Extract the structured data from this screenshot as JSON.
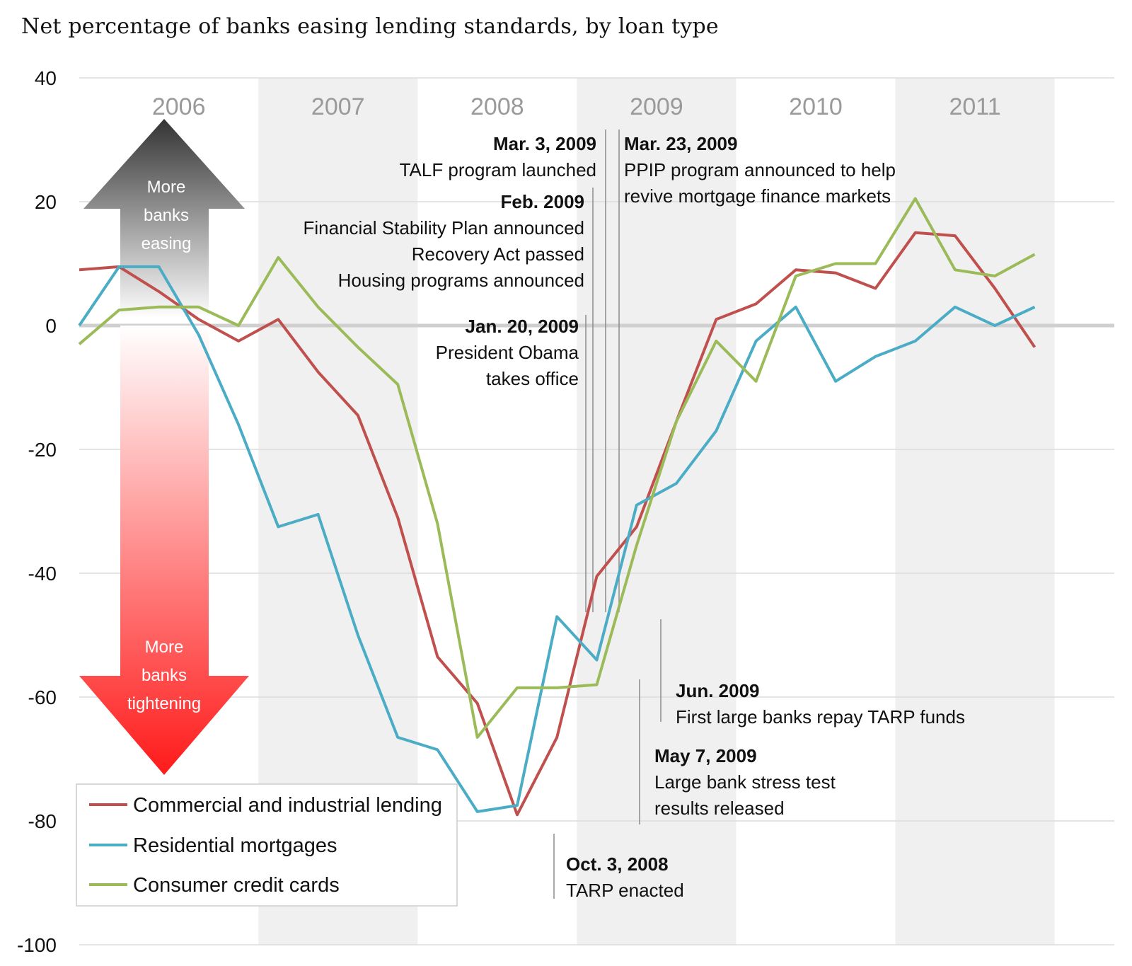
{
  "title": "Net percentage of banks easing lending standards, by loan type",
  "arrow": {
    "up_lines": [
      "More",
      "banks",
      "easing"
    ],
    "down_lines": [
      "More",
      "banks",
      "tightening"
    ]
  },
  "annotations": [
    {
      "key": "tarp",
      "x": 2008.75,
      "bold": "Oct. 3, 2008",
      "lines": [
        "TARP enacted"
      ]
    },
    {
      "key": "obama",
      "x": 2009.05,
      "bold": "Jan. 20, 2009",
      "lines": [
        "President Obama",
        "takes office"
      ]
    },
    {
      "key": "fsp",
      "x": 2009.12,
      "bold": "Feb. 2009",
      "lines": [
        "Financial Stability Plan announced",
        "Recovery Act passed",
        "Housing programs announced"
      ]
    },
    {
      "key": "talf",
      "x": 2009.17,
      "bold": "Mar. 3, 2009",
      "lines": [
        "TALF program launched"
      ]
    },
    {
      "key": "ppip",
      "x": 2009.22,
      "bold": "Mar. 23, 2009",
      "lines": [
        "PPIP program announced to help",
        "revive mortgage finance markets"
      ]
    },
    {
      "key": "stress",
      "x": 2009.35,
      "bold": "May 7, 2009",
      "lines": [
        "Large bank stress test",
        "results released"
      ]
    },
    {
      "key": "repay",
      "x": 2009.45,
      "bold": "Jun. 2009",
      "lines": [
        "First large banks repay TARP funds"
      ]
    }
  ],
  "chart_data": {
    "type": "line",
    "title": "Net percentage of banks easing lending standards, by loan type",
    "xlabel": "",
    "ylabel": "",
    "ylim": [
      -100,
      40
    ],
    "yticks": [
      40,
      20,
      0,
      -20,
      -40,
      -60,
      -80,
      -100
    ],
    "x_axis_years": [
      "2006",
      "2007",
      "2008",
      "2009",
      "2010",
      "2011"
    ],
    "x": [
      2005.875,
      2006.125,
      2006.375,
      2006.625,
      2006.875,
      2007.125,
      2007.375,
      2007.625,
      2007.875,
      2008.125,
      2008.375,
      2008.625,
      2008.875,
      2009.125,
      2009.375,
      2009.625,
      2009.875,
      2010.125,
      2010.375,
      2010.625,
      2010.875,
      2011.125,
      2011.375,
      2011.625,
      2011.875,
      2012.0
    ],
    "series": [
      {
        "name": "Commercial and industrial lending",
        "color": "#c0504d",
        "values": [
          9,
          9.5,
          5.5,
          1,
          -2.5,
          1,
          -7.5,
          -14.5,
          -31,
          -53.5,
          -61,
          -79,
          -66.5,
          -40.5,
          -32.5,
          -15.5,
          1,
          3.5,
          9,
          8.5,
          6,
          15,
          14.5,
          6,
          -3.5,
          null
        ]
      },
      {
        "name": "Residential mortgages",
        "color": "#4bacc6",
        "values": [
          0,
          9.5,
          9.5,
          -1.5,
          -16,
          -32.5,
          -30.5,
          -50,
          -66.5,
          -68.5,
          -78.5,
          -77.5,
          -47,
          -54,
          -29,
          -25.5,
          -17,
          -2.5,
          3,
          -9,
          -5,
          -2.5,
          3,
          0,
          3,
          null
        ]
      },
      {
        "name": "Consumer credit cards",
        "color": "#9bbb59",
        "values": [
          -3,
          2.5,
          3,
          3,
          0,
          11,
          3,
          -3.5,
          -9.5,
          -32,
          -66.5,
          -58.5,
          -58.5,
          -58,
          -35.5,
          -15.5,
          -2.5,
          -9,
          8,
          10,
          10,
          20.5,
          9,
          8,
          11.5,
          null
        ]
      }
    ],
    "legend": {
      "placement": "bottom-left",
      "entries": [
        "Commercial and industrial lending",
        "Residential mortgages",
        "Consumer credit cards"
      ]
    },
    "shaded_years": [
      "2007",
      "2009",
      "2011"
    ],
    "grid": true
  }
}
